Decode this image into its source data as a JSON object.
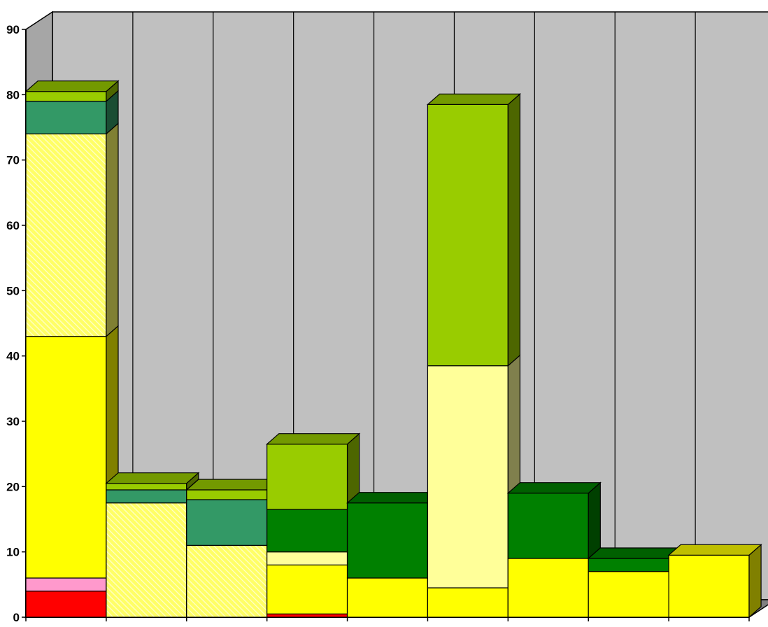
{
  "chart_data": {
    "type": "bar",
    "stacked": true,
    "three_d": true,
    "grid": true,
    "legend": "none",
    "title": "",
    "xlabel": "",
    "ylabel": "",
    "ylim": [
      0,
      90
    ],
    "yticks": [
      "0",
      "10",
      "20",
      "30",
      "40",
      "50",
      "60",
      "70",
      "80",
      "90"
    ],
    "categories": [
      "",
      "",
      "",
      "",
      "",
      "",
      "",
      "",
      ""
    ],
    "wall_color": "#C0C0C0",
    "series": [
      {
        "color": "#FF0000",
        "values": [
          4,
          0,
          0,
          0.5,
          0,
          0,
          0,
          0,
          0
        ]
      },
      {
        "color": "#FF99CC",
        "values": [
          2,
          0,
          0,
          0,
          0,
          0,
          0,
          0,
          0
        ]
      },
      {
        "color": "#FFFF00",
        "values": [
          37,
          0,
          0,
          7.5,
          6,
          4.5,
          9,
          7,
          9.5
        ]
      },
      {
        "color": "#FFFF99",
        "values": [
          0,
          0,
          0,
          2,
          0,
          34,
          0,
          0,
          0
        ]
      },
      {
        "color": "#FFFF66",
        "pattern": "hatched",
        "values": [
          31,
          17.5,
          11,
          0,
          0,
          0,
          0,
          0,
          0
        ]
      },
      {
        "color": "#008000",
        "values": [
          0,
          0,
          0,
          6.5,
          11.5,
          0,
          10,
          2,
          0
        ]
      },
      {
        "color": "#339966",
        "values": [
          5,
          2,
          7,
          0,
          0,
          0,
          0,
          0,
          0
        ]
      },
      {
        "color": "#99CC00",
        "values": [
          1.5,
          1,
          1.5,
          10,
          0,
          40,
          0,
          0,
          0
        ]
      }
    ]
  }
}
